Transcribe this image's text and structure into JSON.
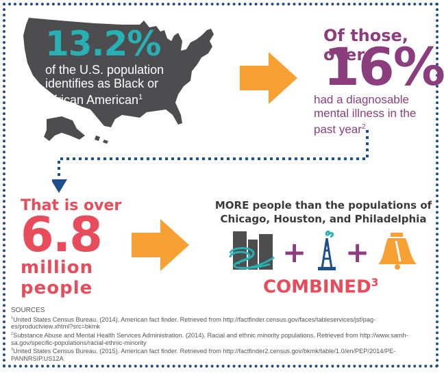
{
  "stat1": {
    "percent": "13.2%",
    "line1": "of the U.S. population",
    "line2": "identifies as Black or",
    "line3": "African American",
    "ref": "1"
  },
  "stat2": {
    "lead": "Of those, over",
    "percent": "16%",
    "line1": "had a diagnosable",
    "line2": "mental illness in the",
    "line3": "past year",
    "ref": "2"
  },
  "stat3": {
    "lead": "That is over",
    "number": "6.8",
    "unit1": "million",
    "unit2": "people"
  },
  "comparison": {
    "line1": "MORE people than the populations of",
    "line2": "Chicago, Houston, and Philadelphia",
    "plus": "+",
    "combined": "COMBINED",
    "ref": "3",
    "icons": [
      "chicago-skyline-icon",
      "oil-derrick-icon",
      "liberty-bell-icon"
    ]
  },
  "sources": {
    "heading": "SOURCES",
    "items": [
      {
        "num": "1",
        "text": "United States Census Bureau. (2014). American fact finder. Retrieved from http://factfinder.census.gov/faces/tableservices/jsf/pag-"
      },
      {
        "num": "",
        "text": "es/productview.xhtml?src=bkmk"
      },
      {
        "num": "2",
        "text": "Substance Abuse and Mental Health Services Administration. (2014).  Racial and ethnic minority populations. Retrieved from http://www.samh-"
      },
      {
        "num": "",
        "text": "sa.gov/specific-populations/racial-ethnic-minority"
      },
      {
        "num": "3",
        "text": "United States Census Bureau. (2015). American fact finder. Retrieved from http://factfinder2.census.gov/bkmk/table/1.0/en/PEP/2014/PE-"
      },
      {
        "num": "",
        "text": "PANNRSIP.US12A"
      }
    ]
  },
  "colors": {
    "border": "#1d4f8c",
    "teal": "#27b1b5",
    "purple": "#8c3d7e",
    "coral": "#e84b5a",
    "orange": "#f7a033",
    "map": "#4d4d4f"
  }
}
